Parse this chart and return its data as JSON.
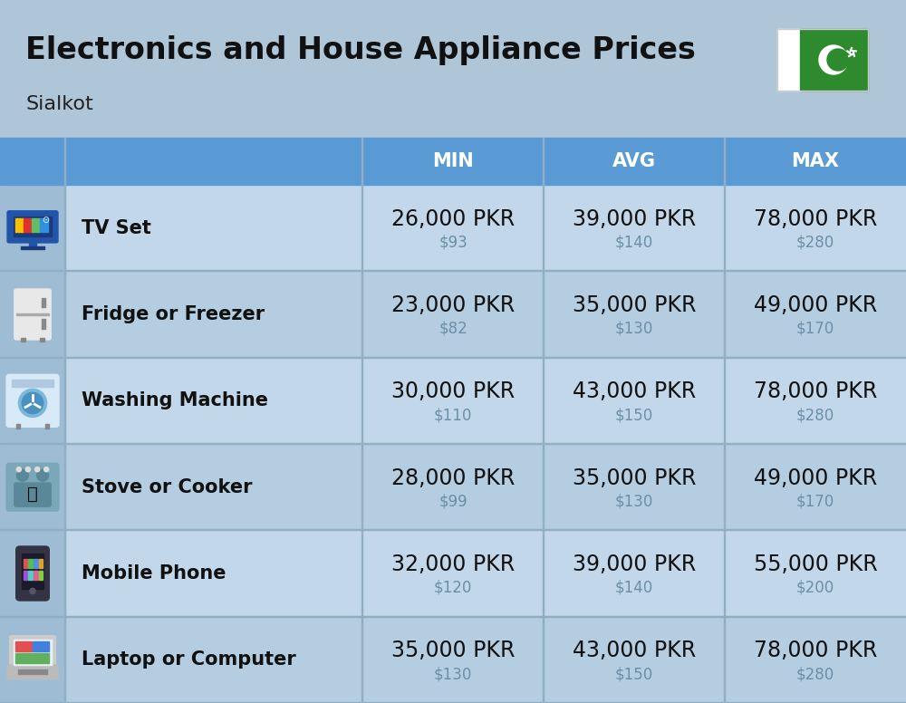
{
  "title": "Electronics and House Appliance Prices",
  "subtitle": "Sialkot",
  "bg_color": "#aec6d8",
  "header_color": "#5b9bd5",
  "header_text_color": "#ffffff",
  "row_bg_even": "#c2d8ea",
  "row_bg_odd": "#b4cde0",
  "icon_col_color": "#9ebdd4",
  "divider_color": "#90afc5",
  "columns": [
    "MIN",
    "AVG",
    "MAX"
  ],
  "items": [
    {
      "name": "TV Set",
      "icon": "tv",
      "min_pkr": "26,000 PKR",
      "min_usd": "$93",
      "avg_pkr": "39,000 PKR",
      "avg_usd": "$140",
      "max_pkr": "78,000 PKR",
      "max_usd": "$280"
    },
    {
      "name": "Fridge or Freezer",
      "icon": "fridge",
      "min_pkr": "23,000 PKR",
      "min_usd": "$82",
      "avg_pkr": "35,000 PKR",
      "avg_usd": "$130",
      "max_pkr": "49,000 PKR",
      "max_usd": "$170"
    },
    {
      "name": "Washing Machine",
      "icon": "washing",
      "min_pkr": "30,000 PKR",
      "min_usd": "$110",
      "avg_pkr": "43,000 PKR",
      "avg_usd": "$150",
      "max_pkr": "78,000 PKR",
      "max_usd": "$280"
    },
    {
      "name": "Stove or Cooker",
      "icon": "stove",
      "min_pkr": "28,000 PKR",
      "min_usd": "$99",
      "avg_pkr": "35,000 PKR",
      "avg_usd": "$130",
      "max_pkr": "49,000 PKR",
      "max_usd": "$170"
    },
    {
      "name": "Mobile Phone",
      "icon": "mobile",
      "min_pkr": "32,000 PKR",
      "min_usd": "$120",
      "avg_pkr": "39,000 PKR",
      "avg_usd": "$140",
      "max_pkr": "55,000 PKR",
      "max_usd": "$200"
    },
    {
      "name": "Laptop or Computer",
      "icon": "laptop",
      "min_pkr": "35,000 PKR",
      "min_usd": "$130",
      "avg_pkr": "43,000 PKR",
      "avg_usd": "$150",
      "max_pkr": "78,000 PKR",
      "max_usd": "$280"
    }
  ],
  "title_fontsize": 24,
  "subtitle_fontsize": 16,
  "header_fontsize": 15,
  "item_name_fontsize": 15,
  "pkr_fontsize": 17,
  "usd_fontsize": 12,
  "usd_color": "#6a8fa8",
  "flag_white": "#ffffff",
  "flag_green": "#2d8a2d",
  "flag_crescent_color": "#ffffff"
}
